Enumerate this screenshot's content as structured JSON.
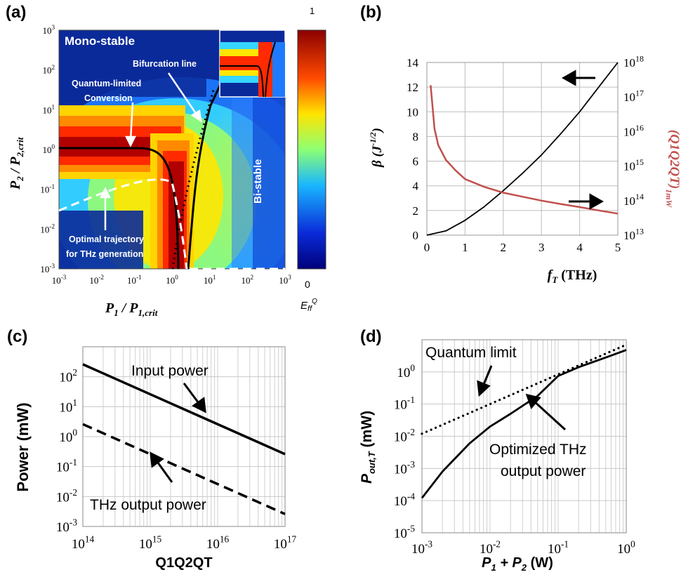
{
  "chart_data": [
    {
      "panel": "(a)",
      "type": "heatmap",
      "xlabel": "P1 / P1,crit",
      "ylabel": "P2 / P2,crit",
      "x_ticks": [
        "-3",
        "-2",
        "-1",
        "0",
        "1",
        "2",
        "3"
      ],
      "y_ticks": [
        "-3",
        "-2",
        "-1",
        "0",
        "1",
        "2",
        "3"
      ],
      "xlim": [
        0.001,
        1000
      ],
      "ylim": [
        0.001,
        1000
      ],
      "scale": "log",
      "colorbar": {
        "label": "E",
        "label_sub": "ff",
        "label_sup": "Q",
        "min_label": "0",
        "max_label": "1"
      },
      "annotations": {
        "mono_stable": "Mono-stable",
        "bi_stable": "Bi-stable",
        "bifurcation": "Bifurcation line",
        "quantum_1": "Quantum-limited",
        "quantum_2": "Conversion",
        "optimal_1": "Optimal trajectory",
        "optimal_2": "for THz generation"
      },
      "colors": {
        "low": "#0a1a8c",
        "mid": "#36c9ff",
        "high": "#8b0000"
      }
    },
    {
      "panel": "(b)",
      "type": "line",
      "xlabel": "f",
      "xlabel_sub": "T",
      "xlabel_unit": " (THz)",
      "ylabel_left": "β (J",
      "ylabel_left_sup": "-1/2",
      "ylabel_left_end": ")",
      "ylabel_right": "(Q1Q2QT)",
      "ylabel_right_sub": "1mW",
      "x_ticks": [
        "0",
        "1",
        "2",
        "3",
        "4",
        "5"
      ],
      "y_ticks": [
        "0",
        "2",
        "4",
        "6",
        "8",
        "10",
        "12",
        "14"
      ],
      "y2_ticks": [
        "13",
        "14",
        "15",
        "16",
        "17",
        "18"
      ],
      "xlim": [
        0,
        5
      ],
      "ylim": [
        0,
        14
      ],
      "y2lim": [
        10000000000000.0,
        1e+18
      ],
      "series": [
        {
          "axis": "left",
          "color": "#000000",
          "x": [
            0,
            0.5,
            1,
            1.5,
            2,
            2.5,
            3,
            3.5,
            4,
            4.5,
            5
          ],
          "values": [
            0,
            0.35,
            1.2,
            2.3,
            3.6,
            5.0,
            6.5,
            8.2,
            10.0,
            12.0,
            14.0
          ]
        },
        {
          "axis": "right",
          "color": "#c0504d",
          "x": [
            0.1,
            0.2,
            0.3,
            0.5,
            0.75,
            1,
            1.5,
            2,
            2.5,
            3,
            3.5,
            4,
            4.5,
            5
          ],
          "values": [
            2.2e+17,
            1.2e+16,
            4000000000000000.0,
            1500000000000000.0,
            750000000000000.0,
            420000000000000.0,
            250000000000000.0,
            170000000000000.0,
            130000000000000.0,
            100000000000000.0,
            80000000000000.0,
            65000000000000.0,
            52000000000000.0,
            42000000000000.0
          ]
        }
      ]
    },
    {
      "panel": "(c)",
      "type": "line",
      "xlabel": "Q1Q2QT",
      "ylabel": "Power (mW)",
      "x_ticks": [
        "14",
        "15",
        "16",
        "17"
      ],
      "y_ticks": [
        "-3",
        "-2",
        "-1",
        "0",
        "1",
        "2"
      ],
      "xlim": [
        100000000000000.0,
        1e+17
      ],
      "ylim": [
        0.001,
        1000
      ],
      "series": [
        {
          "name": "Input power",
          "style": "solid",
          "x": [
            100000000000000.0,
            1e+17
          ],
          "values": [
            260,
            0.26
          ]
        },
        {
          "name": "THz output power",
          "style": "dashed",
          "x": [
            100000000000000.0,
            1e+17
          ],
          "values": [
            2.6,
            0.0026
          ]
        }
      ]
    },
    {
      "panel": "(d)",
      "type": "line",
      "xlabel": "P1 + P2 (W)",
      "ylabel": "Pout,T (mW)",
      "x_ticks": [
        "-3",
        "-2",
        "-1",
        "0"
      ],
      "y_ticks": [
        "-5",
        "-4",
        "-3",
        "-2",
        "-1",
        "0"
      ],
      "xlim": [
        0.001,
        1
      ],
      "ylim": [
        1e-05,
        10
      ],
      "series": [
        {
          "name": "Quantum limit",
          "style": "dotted",
          "x": [
            0.001,
            1
          ],
          "values": [
            0.012,
            7
          ]
        },
        {
          "name": "Optimized THz output power",
          "style": "solid",
          "x": [
            0.001,
            0.002,
            0.005,
            0.01,
            0.02,
            0.05,
            0.1,
            0.2,
            0.5,
            1
          ],
          "values": [
            0.00012,
            0.0008,
            0.006,
            0.02,
            0.05,
            0.18,
            0.75,
            1.4,
            2.8,
            4.8
          ]
        }
      ],
      "annotations": {
        "quantum": "Quantum limit",
        "optimized_1": "Optimized THz",
        "optimized_2": "output power"
      }
    }
  ]
}
